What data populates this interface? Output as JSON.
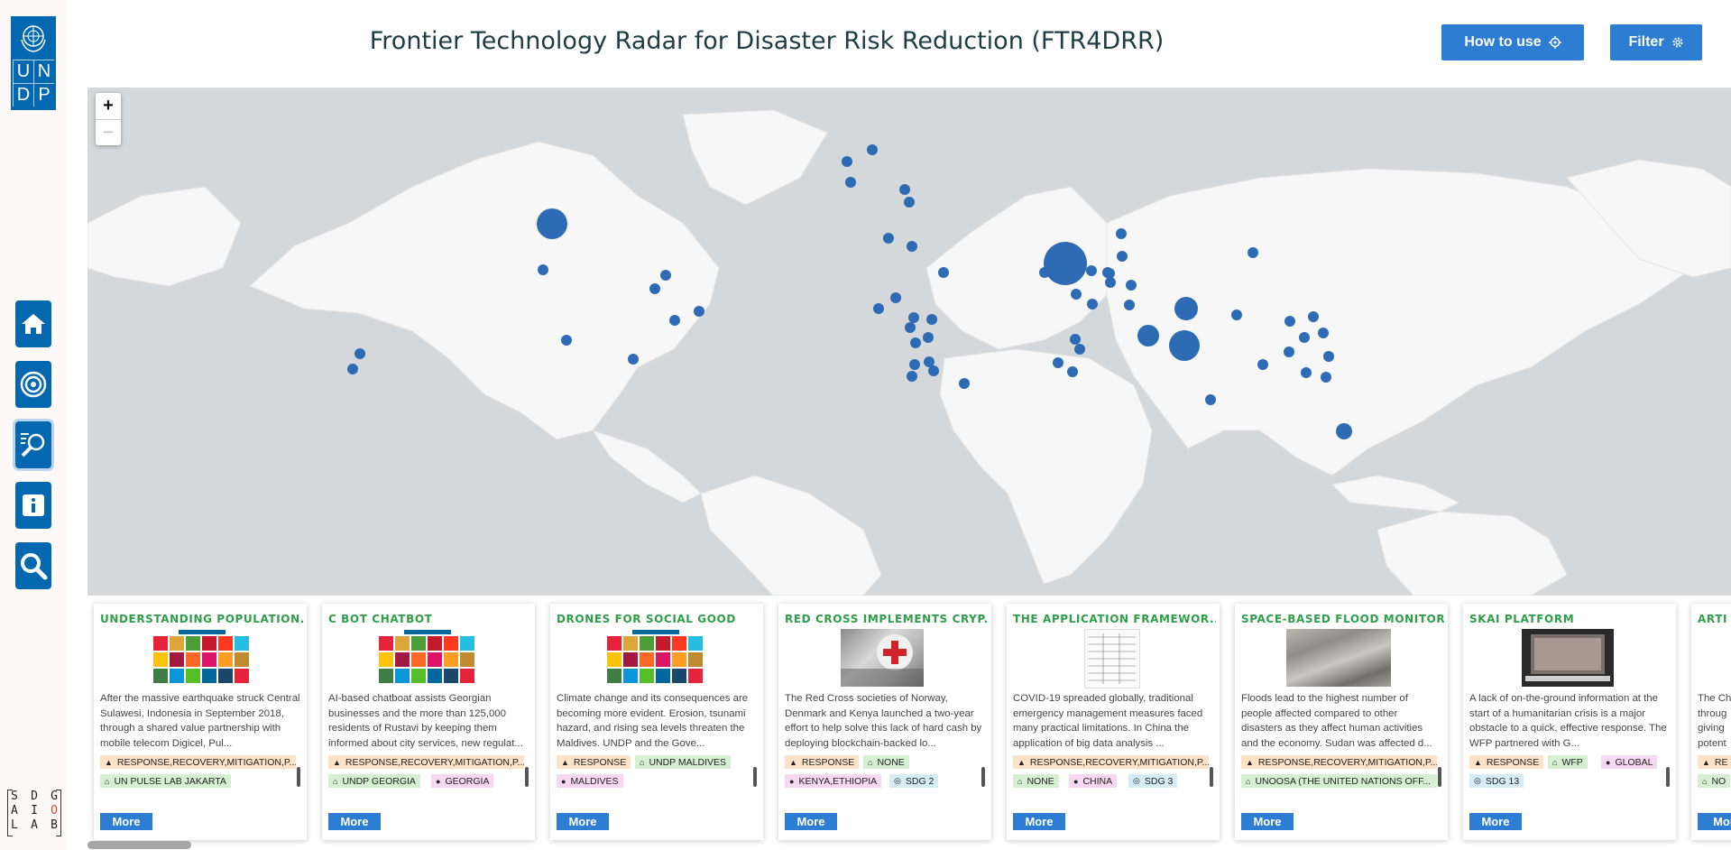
{
  "header": {
    "title": "Frontier Technology Radar for Disaster Risk Reduction (FTR4DRR)",
    "how_to_use_label": "How to use",
    "filter_label": "Filter"
  },
  "sidebar": {
    "logo": {
      "letters": [
        "U",
        "N",
        "D",
        "P"
      ]
    },
    "items": [
      {
        "icon": "home-icon"
      },
      {
        "icon": "radar-target-icon"
      },
      {
        "icon": "explore-magnifier-icon",
        "active": true
      },
      {
        "icon": "info-icon"
      },
      {
        "icon": "search-icon"
      }
    ],
    "footer_logo": {
      "rows": [
        [
          "S",
          "D",
          "G"
        ],
        [
          "A",
          "I",
          "O"
        ],
        [
          "L",
          "A",
          "B"
        ]
      ]
    }
  },
  "map": {
    "zoom_in": "+",
    "zoom_out": "−"
  },
  "cards": [
    {
      "title": "UNDERSTANDING POPULATION...",
      "image": "sdg-grid",
      "description": "After the massive earthquake struck Central Sulawesi, Indonesia in September 2018, through a shared value partnership with mobile telecom Digicel, Pul...",
      "tags": [
        {
          "text": "RESPONSE,RECOVERY,MITIGATION,P...",
          "color": "orange"
        },
        {
          "text": "UN PULSE LAB JAKARTA",
          "color": "green"
        }
      ],
      "more_label": "More"
    },
    {
      "title": "C BOT CHATBOT",
      "image": "sdg-grid",
      "description": "AI-based chatboat assists Georgian businesses and the more than 125,000 residents of Rustavi by keeping them informed about city services, new regulat...",
      "tags": [
        {
          "text": "RESPONSE,RECOVERY,MITIGATION,P...",
          "color": "orange"
        },
        {
          "text": "UNDP GEORGIA",
          "color": "green"
        },
        {
          "text": "GEORGIA",
          "color": "pink"
        }
      ],
      "more_label": "More"
    },
    {
      "title": "DRONES FOR SOCIAL GOOD",
      "image": "sdg-grid",
      "description": "Climate change and its consequences are becoming more evident. Erosion, tsunami hazard, and rising sea levels threaten the Maldives. UNDP and the Gove...",
      "tags": [
        {
          "text": "RESPONSE",
          "color": "orange"
        },
        {
          "text": "UNDP MALDIVES",
          "color": "green"
        },
        {
          "text": "MALDIVES",
          "color": "pink"
        }
      ],
      "more_label": "More"
    },
    {
      "title": "RED CROSS IMPLEMENTS CRYP...",
      "image": "red-cross-photo",
      "description": "The Red Cross societies of Norway, Denmark and Kenya launched a two-year effort to help solve this lack of hard cash by deploying blockchain-backed lo...",
      "tags": [
        {
          "text": "RESPONSE",
          "color": "orange"
        },
        {
          "text": "NONE",
          "color": "green"
        },
        {
          "text": "KENYA,ETHIOPIA",
          "color": "pink"
        },
        {
          "text": "SDG 2",
          "color": "blue"
        }
      ],
      "more_label": "More"
    },
    {
      "title": "THE APPLICATION FRAMEWOR...",
      "image": "document-photo",
      "description": "COVID-19 spreaded globally, traditional emergency management measures faced many practical limitations. In China the application of big data analysis ...",
      "tags": [
        {
          "text": "RESPONSE,RECOVERY,MITIGATION,P...",
          "color": "orange"
        },
        {
          "text": "NONE",
          "color": "green"
        },
        {
          "text": "CHINA",
          "color": "pink"
        },
        {
          "text": "SDG 3",
          "color": "blue"
        }
      ],
      "more_label": "More"
    },
    {
      "title": "SPACE-BASED FLOOD MONITOR...",
      "image": "satellite-photo",
      "description": "Floods lead to the highest number of people affected compared to other disasters as they affect human activities and the economy. Sudan was affected d...",
      "tags": [
        {
          "text": "RESPONSE,RECOVERY,MITIGATION,P...",
          "color": "orange"
        },
        {
          "text": "UNOOSA (THE UNITED NATIONS OFF...",
          "color": "green"
        }
      ],
      "more_label": "More"
    },
    {
      "title": "SKAI PLATFORM",
      "image": "laptop-photo",
      "description": "A lack of on-the-ground information at the start of a humanitarian crisis is a major obstacle to a quick, effective response. The WFP partnered with G...",
      "tags": [
        {
          "text": "RESPONSE",
          "color": "orange"
        },
        {
          "text": "WFP",
          "color": "green"
        },
        {
          "text": "GLOBAL",
          "color": "pink"
        },
        {
          "text": "SDG 13",
          "color": "blue"
        }
      ],
      "more_label": "More"
    },
    {
      "title": "ARTI",
      "image": "none",
      "description": "The Ch throug giving potent",
      "tags": [
        {
          "text": "RE",
          "color": "orange"
        },
        {
          "text": "NO",
          "color": "green"
        }
      ],
      "more_label": "Mor"
    }
  ],
  "colors": {
    "accent": "#2d7dd2",
    "brand": "#0468b1",
    "card_title": "#2f9e4a",
    "ocean": "#d4d8da",
    "land": "#f7f7f7",
    "marker": "#2e6bb5"
  }
}
